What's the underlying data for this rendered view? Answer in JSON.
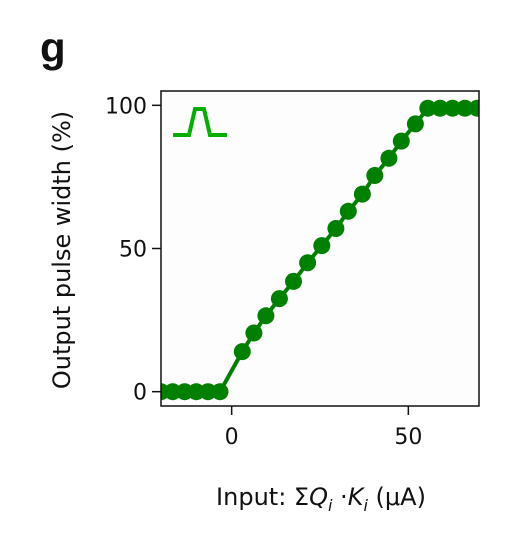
{
  "panel_label": "g",
  "chart_data": {
    "type": "line",
    "title": "",
    "xlabel": "Input: ΣQ_i·K_i (μA)",
    "xlabel_parts": {
      "prefix": "Input: Σ",
      "q": "Q",
      "i1": "i",
      "dot": " ·",
      "k": "K",
      "i2": "i",
      "suffix": " (μA)"
    },
    "ylabel": "Output pulse width (%)",
    "xlim": [
      -20,
      70
    ],
    "ylim": [
      -5,
      105
    ],
    "xticks": [
      0,
      50
    ],
    "xtick_labels": [
      "0",
      "50"
    ],
    "yticks": [
      0,
      50,
      100
    ],
    "ytick_labels": [
      "0",
      "50",
      "100"
    ],
    "grid": false,
    "series": [
      {
        "color": "#008000",
        "x": [
          -20,
          -16.7,
          -13.3,
          -10,
          -6.7,
          -3.3,
          3,
          6.3,
          9.7,
          13.5,
          17.5,
          21.5,
          25.5,
          29.5,
          33,
          37,
          40.5,
          44.5,
          48,
          52,
          55.5,
          59,
          62.5,
          66,
          69.5
        ],
        "y": [
          0,
          0,
          0,
          0,
          0,
          0,
          14,
          20.5,
          26.5,
          32.5,
          38.5,
          45,
          51,
          57,
          63,
          69,
          75.5,
          81.5,
          87.5,
          93.5,
          99,
          99,
          99,
          99,
          99
        ]
      }
    ],
    "inset_icon": {
      "name": "square-pulse-icon",
      "color": "#00b000"
    }
  }
}
